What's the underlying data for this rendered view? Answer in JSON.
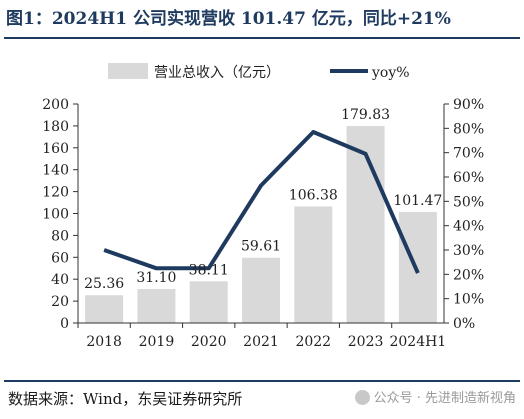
{
  "figure": {
    "title": "图1：2024H1 公司实现营收 101.47 亿元，同比+21%",
    "source": "数据来源：Wind，东吴证券研究所",
    "watermark": "公众号 · 先进制造新视角",
    "watermark_icon": "wechat-icon"
  },
  "chart_data": {
    "type": "bar",
    "categories": [
      "2018",
      "2019",
      "2020",
      "2021",
      "2022",
      "2023",
      "2024H1"
    ],
    "series": [
      {
        "name": "营业总收入（亿元）",
        "type": "bar",
        "axis": "left",
        "values": [
          25.36,
          31.1,
          38.11,
          59.61,
          106.38,
          179.83,
          101.47
        ],
        "labels": [
          "25.36",
          "31.10",
          "38.11",
          "59.61",
          "106.38",
          "179.83",
          "101.47"
        ],
        "color": "#d9d9d9"
      },
      {
        "name": "yoy%",
        "type": "line",
        "axis": "right",
        "values": [
          30,
          22.5,
          22.5,
          56.5,
          78.5,
          69.5,
          20.5
        ],
        "color": "#1f3a5f"
      }
    ],
    "y_left": {
      "min": 0,
      "max": 200,
      "ticks": [
        "0",
        "20",
        "40",
        "60",
        "80",
        "100",
        "120",
        "140",
        "160",
        "180",
        "200"
      ]
    },
    "y_right": {
      "min": 0,
      "max": 90,
      "ticks": [
        "0%",
        "10%",
        "20%",
        "30%",
        "40%",
        "50%",
        "60%",
        "70%",
        "80%",
        "90%"
      ]
    },
    "legend_position": "top",
    "grid": false
  }
}
